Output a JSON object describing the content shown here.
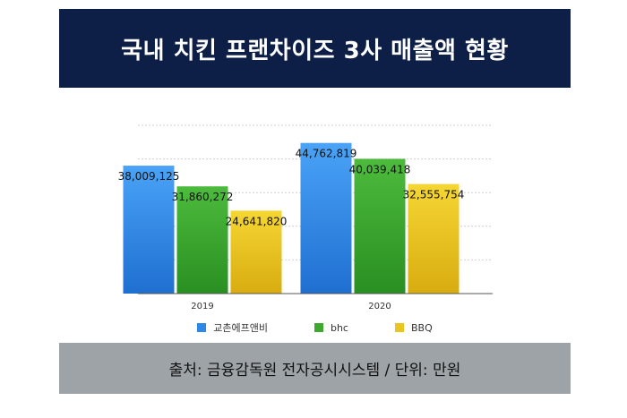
{
  "title": "국내 치킨 프랜차이즈 3사 매출액 현황",
  "source": "출처: 금융감독원 전자공시시스템 / 단위: 만원",
  "chart_data": {
    "type": "bar",
    "categories": [
      "2019",
      "2020"
    ],
    "series": [
      {
        "name": "교촌에프앤비",
        "values": [
          38009125,
          44762819
        ],
        "labels": [
          "38,009,125",
          "44,762,819"
        ],
        "color": "#2f87e8"
      },
      {
        "name": "bhc",
        "values": [
          31860272,
          40039418
        ],
        "labels": [
          "31,860,272",
          "40,039,418"
        ],
        "color": "#3daa2e"
      },
      {
        "name": "BBQ",
        "values": [
          24641820,
          32555754
        ],
        "labels": [
          "24,641,820",
          "32,555,754"
        ],
        "color": "#e9c51d"
      }
    ],
    "ylim": [
      0,
      50000000
    ],
    "grid": true,
    "legend_position": "bottom"
  }
}
